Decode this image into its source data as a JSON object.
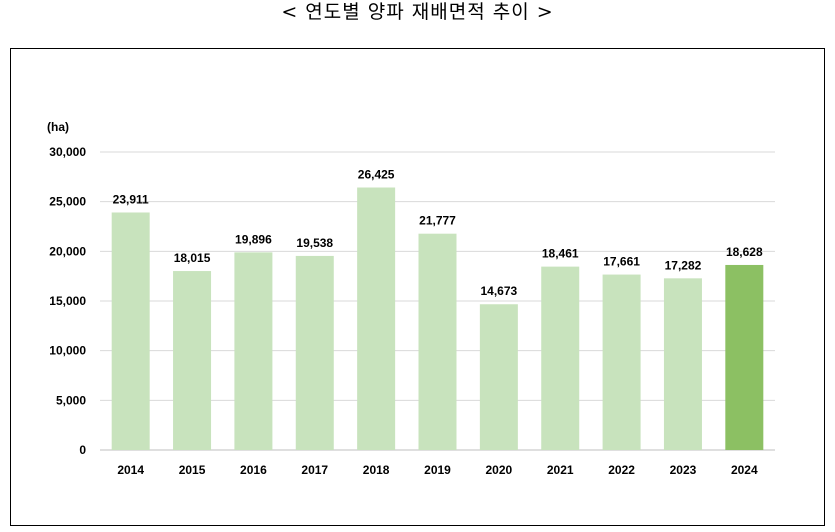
{
  "title": "< 연도별 양파 재배면적 추이 >",
  "chart_data": {
    "type": "bar",
    "title": "< 연도별 양파 재배면적 추이 >",
    "ylabel": "(ha)",
    "xlabel": "",
    "categories": [
      "2014",
      "2015",
      "2016",
      "2017",
      "2018",
      "2019",
      "2020",
      "2021",
      "2022",
      "2023",
      "2024"
    ],
    "values": [
      23911,
      18015,
      19896,
      19538,
      26425,
      21777,
      14673,
      18461,
      17661,
      17282,
      18628
    ],
    "value_labels": [
      "23,911",
      "18,015",
      "19,896",
      "19,538",
      "26,425",
      "21,777",
      "14,673",
      "18,461",
      "17,661",
      "17,282",
      "18,628"
    ],
    "ylim": [
      0,
      30000
    ],
    "yticks": [
      0,
      5000,
      10000,
      15000,
      20000,
      25000,
      30000
    ],
    "ytick_labels": [
      "0",
      "5,000",
      "10,000",
      "15,000",
      "20,000",
      "25,000",
      "30,000"
    ],
    "grid": true,
    "colors": {
      "bar": "#c8e3bd",
      "highlight": "#8cc063",
      "grid": "#d9d9d9"
    },
    "highlight_index": 10
  }
}
